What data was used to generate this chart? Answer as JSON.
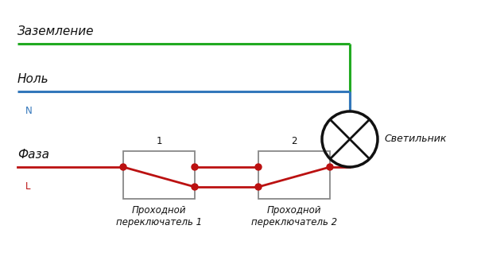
{
  "background_color": "#ffffff",
  "green_line": {
    "color": "#22aa22",
    "lw": 2.2
  },
  "blue_line": {
    "color": "#3377bb",
    "lw": 2.2
  },
  "red_line": {
    "color": "#bb1111",
    "lw": 2.0
  },
  "box_color": "#888888",
  "lamp_color": "#111111",
  "text_color": "#111111",
  "label_zazemlenie": "Заземление",
  "label_nol": "Ноль",
  "label_N": "N",
  "label_faza": "Фаза",
  "label_L": "L",
  "label_svetilnik": "Светильник",
  "label_switch1": "Проходной\nпереключатель 1",
  "label_switch2": "Проходной\nпереключатель 2",
  "label_1": "1",
  "label_2": "2",
  "figsize": [
    6.0,
    3.42
  ],
  "dpi": 100
}
